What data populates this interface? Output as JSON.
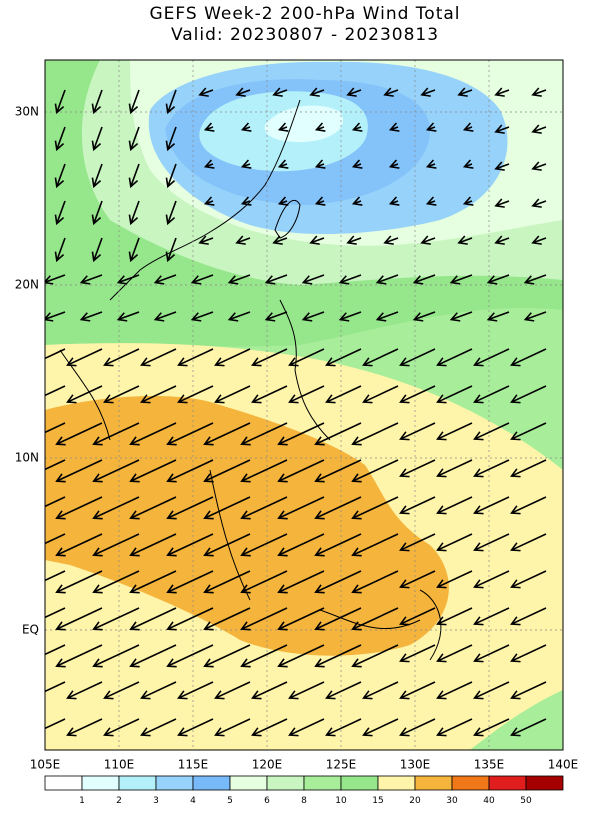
{
  "header": {
    "title": "GEFS Week-2 200-hPa Wind Total",
    "subtitle": "Valid: 20230807 - 20230813"
  },
  "map": {
    "lat_labels": [
      "30N",
      "20N",
      "10N",
      "EQ"
    ],
    "lon_labels": [
      "105E",
      "110E",
      "115E",
      "120E",
      "125E",
      "130E",
      "135E",
      "140E"
    ]
  },
  "colorbar": {
    "levels": [
      1,
      2,
      3,
      4,
      5,
      6,
      8,
      10,
      15,
      20,
      30,
      40,
      50
    ],
    "colors": [
      "#ffffff",
      "#e1ffff",
      "#b4f0fa",
      "#96d2fa",
      "#78b9fa",
      "#e6ffe0",
      "#c8f5c0",
      "#a8ee9a",
      "#96e68c",
      "#fff5aa",
      "#f5b43c",
      "#f07819",
      "#e11e1e",
      "#a50000"
    ]
  }
}
